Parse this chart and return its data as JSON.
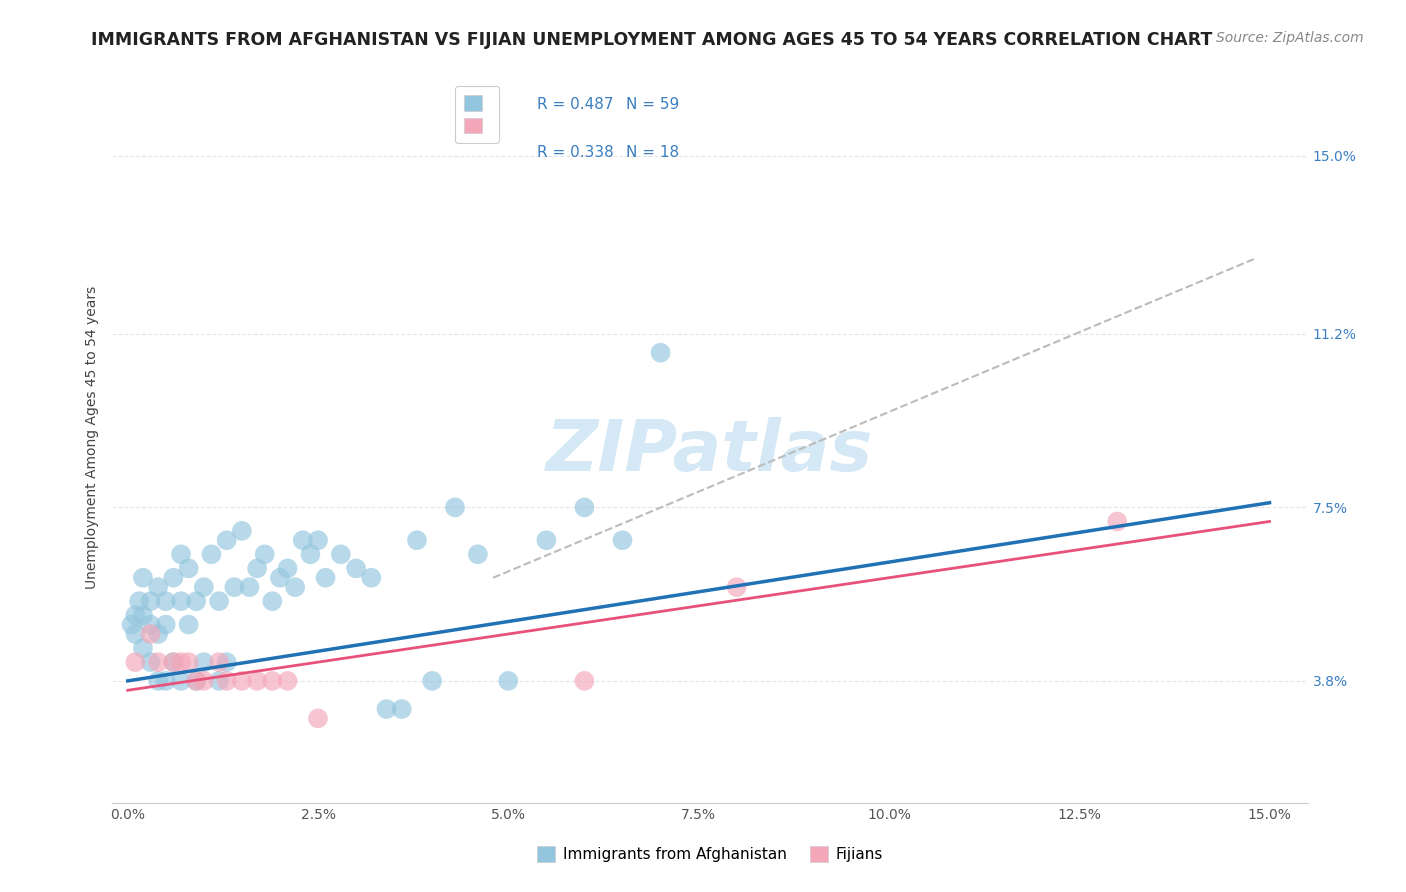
{
  "title": "IMMIGRANTS FROM AFGHANISTAN VS FIJIAN UNEMPLOYMENT AMONG AGES 45 TO 54 YEARS CORRELATION CHART",
  "source": "Source: ZipAtlas.com",
  "ylabel": "Unemployment Among Ages 45 to 54 years",
  "ytick_labels": [
    "3.8%",
    "7.5%",
    "11.2%",
    "15.0%"
  ],
  "ytick_vals": [
    0.038,
    0.075,
    0.112,
    0.15
  ],
  "xtick_vals": [
    0.0,
    0.025,
    0.05,
    0.075,
    0.1,
    0.125,
    0.15
  ],
  "xtick_labels": [
    "0.0%",
    "2.5%",
    "5.0%",
    "7.5%",
    "10.0%",
    "12.5%",
    "15.0%"
  ],
  "xmin": -0.002,
  "xmax": 0.155,
  "ymin": 0.012,
  "ymax": 0.168,
  "blue_color": "#92c5de",
  "pink_color": "#f4a7b9",
  "blue_line_color": "#2171b5",
  "pink_line_color": "#e8527a",
  "dashed_line_color": "#bbbbbb",
  "legend_r1": "R = 0.487",
  "legend_n1": "N = 59",
  "legend_r2": "R = 0.338",
  "legend_n2": "N = 18",
  "watermark": "ZIPatlas",
  "blue_points_x": [
    0.0005,
    0.001,
    0.001,
    0.0015,
    0.002,
    0.002,
    0.002,
    0.003,
    0.003,
    0.003,
    0.004,
    0.004,
    0.004,
    0.005,
    0.005,
    0.005,
    0.006,
    0.006,
    0.007,
    0.007,
    0.007,
    0.008,
    0.008,
    0.009,
    0.009,
    0.01,
    0.01,
    0.011,
    0.012,
    0.012,
    0.013,
    0.013,
    0.014,
    0.015,
    0.016,
    0.017,
    0.018,
    0.019,
    0.02,
    0.021,
    0.022,
    0.023,
    0.024,
    0.025,
    0.026,
    0.028,
    0.03,
    0.032,
    0.034,
    0.036,
    0.038,
    0.04,
    0.043,
    0.046,
    0.05,
    0.055,
    0.06,
    0.065,
    0.07
  ],
  "blue_points_y": [
    0.05,
    0.052,
    0.048,
    0.055,
    0.06,
    0.052,
    0.045,
    0.055,
    0.05,
    0.042,
    0.058,
    0.048,
    0.038,
    0.055,
    0.05,
    0.038,
    0.06,
    0.042,
    0.065,
    0.055,
    0.038,
    0.062,
    0.05,
    0.055,
    0.038,
    0.058,
    0.042,
    0.065,
    0.055,
    0.038,
    0.068,
    0.042,
    0.058,
    0.07,
    0.058,
    0.062,
    0.065,
    0.055,
    0.06,
    0.062,
    0.058,
    0.068,
    0.065,
    0.068,
    0.06,
    0.065,
    0.062,
    0.06,
    0.032,
    0.032,
    0.068,
    0.038,
    0.075,
    0.065,
    0.038,
    0.068,
    0.075,
    0.068,
    0.108
  ],
  "pink_points_x": [
    0.001,
    0.003,
    0.004,
    0.006,
    0.007,
    0.008,
    0.009,
    0.01,
    0.012,
    0.013,
    0.015,
    0.017,
    0.019,
    0.021,
    0.025,
    0.06,
    0.08,
    0.13
  ],
  "pink_points_y": [
    0.042,
    0.048,
    0.042,
    0.042,
    0.042,
    0.042,
    0.038,
    0.038,
    0.042,
    0.038,
    0.038,
    0.038,
    0.038,
    0.038,
    0.03,
    0.038,
    0.058,
    0.072
  ],
  "blue_line_x": [
    0.0,
    0.15
  ],
  "blue_line_y": [
    0.038,
    0.076
  ],
  "pink_line_x": [
    0.0,
    0.15
  ],
  "pink_line_y": [
    0.036,
    0.072
  ],
  "dashed_line_x": [
    0.048,
    0.148
  ],
  "dashed_line_y": [
    0.06,
    0.128
  ],
  "title_fontsize": 12.5,
  "source_fontsize": 10,
  "axis_label_fontsize": 10,
  "tick_fontsize": 10,
  "legend_fontsize": 11,
  "watermark_fontsize": 52,
  "watermark_color": "#d4e8f5",
  "background_color": "#ffffff",
  "grid_color": "#e0e0e0"
}
